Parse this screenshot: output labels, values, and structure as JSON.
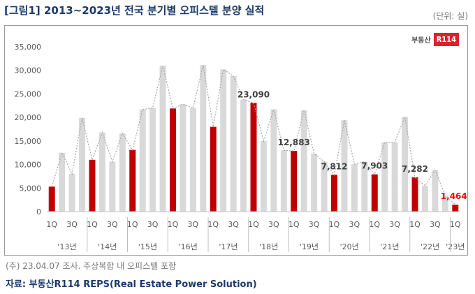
{
  "title": "[그림1] 2013~2023년 전국 분기별 오피스텔 분양 실적",
  "unit": "(단위: 실)",
  "logo": {
    "text": "부동산",
    "badge": "R114"
  },
  "note": "(주) 23.04.07 조사. 주상복합 내 오피스텔 포함",
  "source": "자료: 부동산R114 REPS(Real Estate Power Solution)",
  "colors": {
    "bar_default": "#d9d9d9",
    "bar_q1": "#c00000",
    "trend_line": "#a6a6a6",
    "highlight_label": "#ff0000"
  },
  "chart_data": {
    "type": "bar",
    "ylim": [
      0,
      35000
    ],
    "yticks": [
      "0",
      "5,000",
      "10,000",
      "15,000",
      "20,000",
      "25,000",
      "30,000",
      "35,000"
    ],
    "grid": false,
    "trend_line": true,
    "quarter_labels": [
      "1Q",
      "3Q"
    ],
    "year_labels": [
      "'13년",
      "'14년",
      "'15년",
      "'16년",
      "'17년",
      "'18년",
      "'19년",
      "'20년",
      "'21년",
      "'22년",
      "'23년"
    ],
    "values": [
      5300,
      12500,
      8000,
      19900,
      11000,
      16800,
      10600,
      16600,
      13100,
      21700,
      22000,
      31000,
      21900,
      22800,
      22000,
      31100,
      18000,
      30200,
      28800,
      23800,
      23090,
      15000,
      21700,
      13000,
      12883,
      21500,
      12300,
      10600,
      7812,
      19400,
      10100,
      10600,
      7903,
      14700,
      14700,
      20100,
      7282,
      5500,
      8800,
      3400,
      1464
    ],
    "data_labels": [
      {
        "index": 20,
        "text": "23,090"
      },
      {
        "index": 24,
        "text": "12,883"
      },
      {
        "index": 28,
        "text": "7,812"
      },
      {
        "index": 32,
        "text": "7,903"
      },
      {
        "index": 36,
        "text": "7,282"
      },
      {
        "index": 40,
        "text": "1,464",
        "highlight": true
      }
    ]
  }
}
